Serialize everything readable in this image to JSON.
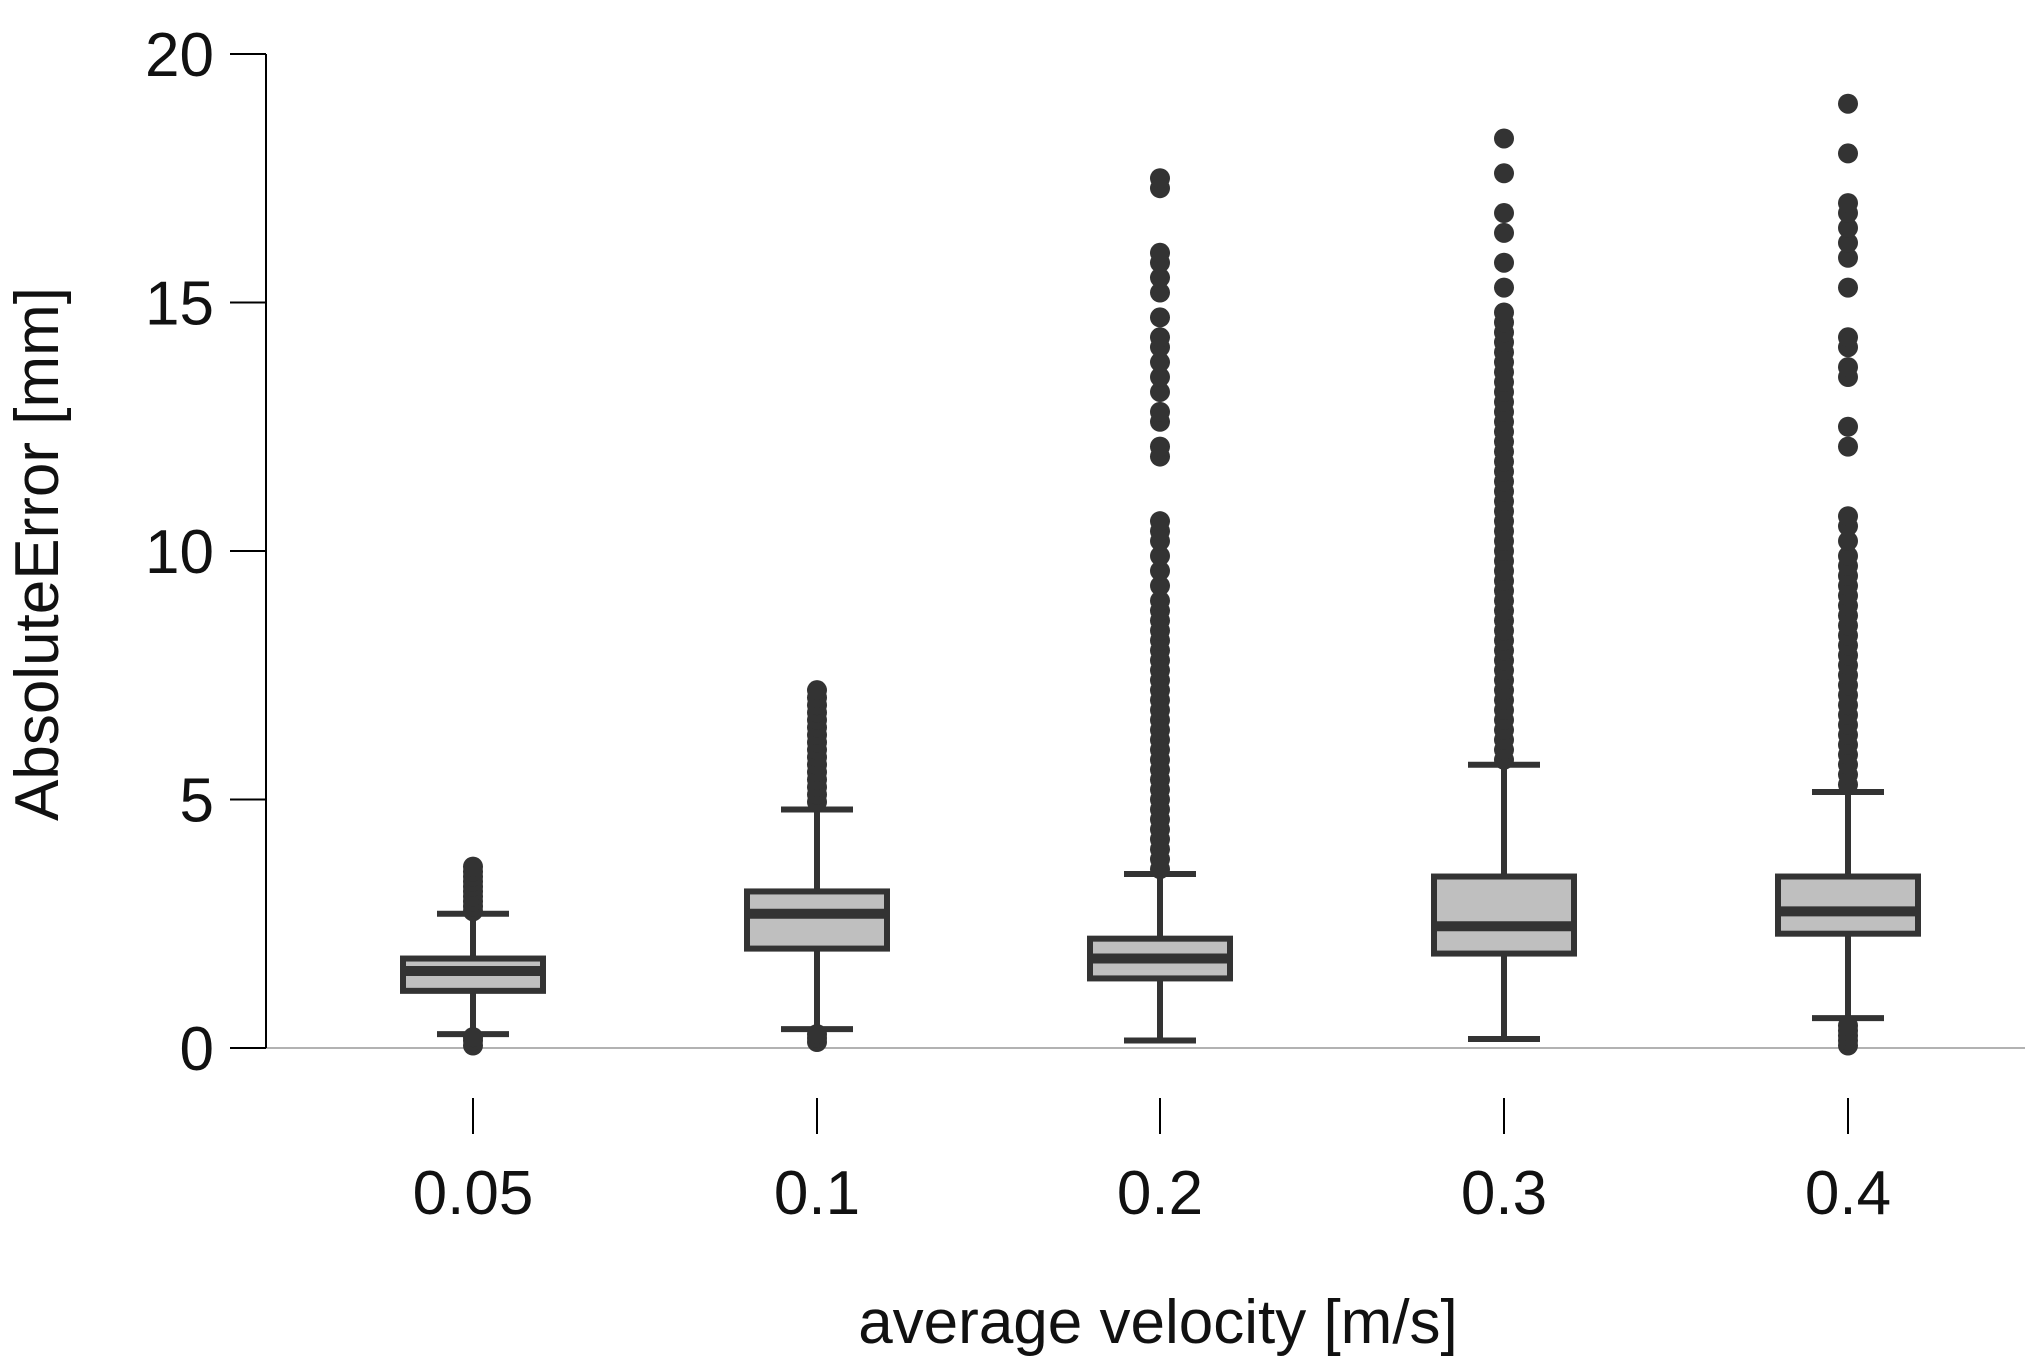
{
  "chart_data": {
    "type": "box",
    "title": "",
    "xlabel": "average velocity [m/s]",
    "ylabel": "AbsoluteError [mm]",
    "ylim": [
      0,
      20
    ],
    "yticks": [
      0,
      5,
      10,
      15,
      20
    ],
    "grid": false,
    "colors": {
      "box_fill": "#bfbfbf",
      "stroke": "#333333",
      "axis": "#000000",
      "baseline": "#999999"
    },
    "categories": [
      "0.05",
      "0.1",
      "0.2",
      "0.3",
      "0.4"
    ],
    "boxes": [
      {
        "category": "0.05",
        "whisker_low": 0.28,
        "q1": 1.15,
        "median": 1.55,
        "q3": 1.8,
        "whisker_high": 2.7,
        "outliers": [
          0.05,
          0.15,
          0.22,
          2.75,
          2.85,
          2.95,
          3.05,
          3.15,
          3.25,
          3.35,
          3.45,
          3.55,
          3.65
        ]
      },
      {
        "category": "0.1",
        "whisker_low": 0.38,
        "q1": 2.0,
        "median": 2.7,
        "q3": 3.15,
        "whisker_high": 4.8,
        "outliers": [
          0.12,
          0.2,
          0.28,
          4.95,
          5.1,
          5.25,
          5.4,
          5.55,
          5.7,
          5.85,
          6.0,
          6.15,
          6.3,
          6.45,
          6.6,
          6.75,
          6.9,
          7.05,
          7.2
        ]
      },
      {
        "category": "0.2",
        "whisker_low": 0.15,
        "q1": 1.4,
        "median": 1.8,
        "q3": 2.2,
        "whisker_high": 3.5,
        "outliers": [
          3.6,
          3.8,
          4.0,
          4.2,
          4.4,
          4.6,
          4.8,
          5.0,
          5.2,
          5.4,
          5.6,
          5.8,
          6.0,
          6.2,
          6.4,
          6.6,
          6.8,
          7.0,
          7.2,
          7.4,
          7.6,
          7.8,
          8.0,
          8.2,
          8.4,
          8.6,
          8.8,
          9.0,
          9.3,
          9.6,
          9.9,
          10.2,
          10.4,
          10.6,
          11.9,
          12.1,
          12.6,
          12.8,
          13.2,
          13.5,
          13.8,
          14.1,
          14.3,
          14.7,
          15.2,
          15.5,
          15.8,
          16.0,
          17.3,
          17.5
        ]
      },
      {
        "category": "0.3",
        "whisker_low": 0.18,
        "q1": 1.9,
        "median": 2.45,
        "q3": 3.45,
        "whisker_high": 5.7,
        "outliers": [
          5.8,
          6.0,
          6.2,
          6.4,
          6.6,
          6.8,
          7.0,
          7.2,
          7.4,
          7.6,
          7.8,
          8.0,
          8.2,
          8.4,
          8.6,
          8.8,
          9.0,
          9.2,
          9.4,
          9.6,
          9.8,
          10.0,
          10.2,
          10.4,
          10.6,
          10.8,
          11.0,
          11.2,
          11.4,
          11.6,
          11.8,
          12.0,
          12.2,
          12.4,
          12.6,
          12.8,
          13.0,
          13.2,
          13.4,
          13.6,
          13.8,
          14.0,
          14.2,
          14.4,
          14.6,
          14.8,
          15.3,
          15.8,
          16.4,
          16.8,
          17.6,
          18.3
        ]
      },
      {
        "category": "0.4",
        "whisker_low": 0.6,
        "q1": 2.3,
        "median": 2.75,
        "q3": 3.45,
        "whisker_high": 5.15,
        "outliers": [
          0.05,
          0.15,
          0.25,
          0.35,
          0.45,
          5.3,
          5.5,
          5.7,
          5.9,
          6.1,
          6.3,
          6.5,
          6.7,
          6.9,
          7.1,
          7.3,
          7.5,
          7.7,
          7.9,
          8.1,
          8.3,
          8.5,
          8.7,
          8.9,
          9.1,
          9.3,
          9.5,
          9.7,
          9.9,
          10.2,
          10.5,
          10.7,
          12.1,
          12.5,
          13.5,
          13.7,
          14.1,
          14.3,
          15.3,
          15.9,
          16.2,
          16.5,
          16.8,
          17.0,
          18.0,
          19.0
        ]
      }
    ]
  }
}
